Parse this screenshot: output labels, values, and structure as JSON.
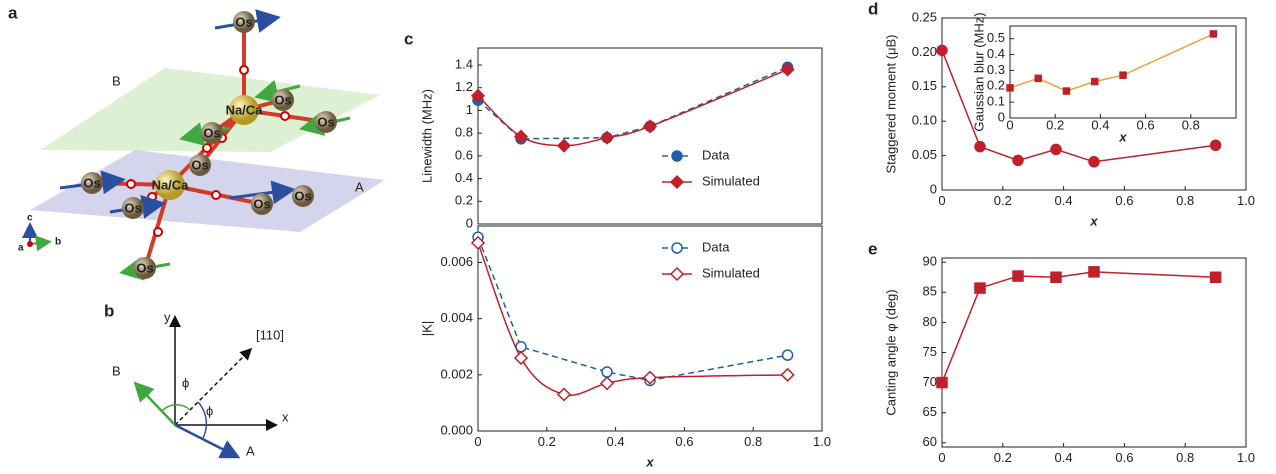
{
  "diagram_a": {
    "panel": "a",
    "plane_b": "B",
    "plane_a": "A",
    "os_labels": [
      "Os",
      "Os",
      "Os",
      "Os",
      "Os",
      "Os",
      "Os",
      "Os",
      "Os",
      "Os"
    ],
    "center_labels": [
      "Na/Ca",
      "Na/Ca"
    ],
    "axes": [
      "c",
      "a",
      "b"
    ]
  },
  "diagram_b": {
    "panel": "b",
    "y": "y",
    "x": "x",
    "direction": "[110]",
    "vec_b": "B",
    "vec_a": "A",
    "angle_1": "ϕ",
    "angle_2": "ϕ"
  },
  "chart_data": [
    {
      "panel": "c",
      "type": "line",
      "ylabel": "Linewidth (MHz)",
      "xlim": [
        0,
        1
      ],
      "ylim": [
        0,
        1.55
      ],
      "yticks": [
        0,
        0.2,
        0.4,
        0.6,
        0.8,
        1.0,
        1.2,
        1.4
      ],
      "legend": "lower right",
      "series": [
        {
          "name": "Data",
          "color": "#1f5fa8",
          "marker": "circle",
          "filled": true,
          "dashed": true,
          "smooth": false,
          "x": [
            0,
            0.125,
            0.375,
            0.5,
            0.9
          ],
          "values": [
            1.09,
            0.75,
            0.76,
            0.86,
            1.38
          ]
        },
        {
          "name": "Simulated",
          "color": "#c0202a",
          "marker": "diamond",
          "filled": true,
          "dashed": false,
          "smooth": true,
          "x": [
            0,
            0.125,
            0.25,
            0.375,
            0.5,
            0.9
          ],
          "values": [
            1.13,
            0.77,
            0.69,
            0.76,
            0.86,
            1.36
          ]
        }
      ]
    },
    {
      "type": "line",
      "ylabel": "|K|",
      "xlabel": "x",
      "xlim": [
        0,
        1
      ],
      "ylim": [
        0,
        0.0073
      ],
      "yticks": [
        {
          "value": 0,
          "label": "0.000"
        },
        {
          "value": 0.002,
          "label": "0.002"
        },
        {
          "value": 0.004,
          "label": "0.004"
        },
        {
          "value": 0.006,
          "label": "0.006"
        }
      ],
      "xticks": [
        0,
        0.2,
        0.4,
        0.6,
        0.8,
        {
          "value": 1,
          "label": "1.0"
        }
      ],
      "legend": "upper right",
      "series": [
        {
          "name": "Data",
          "color": "#1f5fa8",
          "marker": "circle",
          "filled": false,
          "dashed": true,
          "smooth": false,
          "x": [
            0,
            0.125,
            0.375,
            0.5,
            0.9
          ],
          "values": [
            0.0069,
            0.003,
            0.0021,
            0.0018,
            0.0027
          ]
        },
        {
          "name": "Simulated",
          "color": "#c0202a",
          "marker": "diamond",
          "filled": false,
          "dashed": false,
          "smooth": true,
          "x": [
            0,
            0.125,
            0.25,
            0.375,
            0.5,
            0.9
          ],
          "values": [
            0.0067,
            0.0026,
            0.0013,
            0.0017,
            0.0019,
            0.002
          ]
        }
      ]
    },
    {
      "panel": "d",
      "type": "line",
      "ylabel": "Staggered moment (μB)",
      "xlabel": "x",
      "xlim": [
        0,
        1
      ],
      "ylim": [
        0,
        0.25
      ],
      "yticks": [
        0,
        0.05,
        {
          "value": 0.1,
          "label": "0.10"
        },
        0.15,
        {
          "value": 0.2,
          "label": "0.20"
        },
        0.25
      ],
      "xticks": [
        0,
        0.2,
        0.4,
        0.6,
        0.8,
        {
          "value": 1,
          "label": "1.0"
        }
      ],
      "series": [
        {
          "color": "#c0202a",
          "marker": "circle",
          "filled": true,
          "dashed": false,
          "smooth": false,
          "x": [
            0,
            0.125,
            0.25,
            0.375,
            0.5,
            0.9
          ],
          "values": [
            0.203,
            0.063,
            0.043,
            0.059,
            0.041,
            0.065
          ]
        }
      ]
    },
    {
      "type": "line",
      "ylabel": "Gaussian blur (MHz)",
      "xlabel": "x",
      "xlim": [
        0,
        1
      ],
      "ylim": [
        0,
        0.58
      ],
      "yticks": [
        0,
        0.1,
        0.2,
        0.3,
        0.4,
        0.5
      ],
      "xticks": [
        0,
        0.2,
        0.4,
        0.6,
        0.8
      ],
      "series": [
        {
          "color": "#e8a33a",
          "marker_color": "#c0202a",
          "marker": "square",
          "filled": true,
          "dashed": false,
          "smooth": false,
          "x": [
            0,
            0.125,
            0.25,
            0.375,
            0.5,
            0.9
          ],
          "values": [
            0.19,
            0.25,
            0.17,
            0.23,
            0.27,
            0.53
          ]
        }
      ]
    },
    {
      "panel": "e",
      "type": "line",
      "ylabel": "Canting angle φ (deg)",
      "xlabel": "x",
      "xlim": [
        0,
        1
      ],
      "ylim": [
        59.3,
        90.7
      ],
      "yticks": [
        60,
        65,
        70,
        75,
        80,
        85,
        90
      ],
      "xticks": [
        0,
        0.2,
        0.4,
        0.6,
        0.8,
        {
          "value": 1,
          "label": "1.0"
        }
      ],
      "series": [
        {
          "color": "#c0202a",
          "marker": "square",
          "filled": true,
          "dashed": false,
          "smooth": false,
          "x": [
            0,
            0.125,
            0.25,
            0.375,
            0.5,
            0.9
          ],
          "values": [
            70,
            85.7,
            87.7,
            87.5,
            88.4,
            87.5
          ]
        }
      ]
    }
  ]
}
